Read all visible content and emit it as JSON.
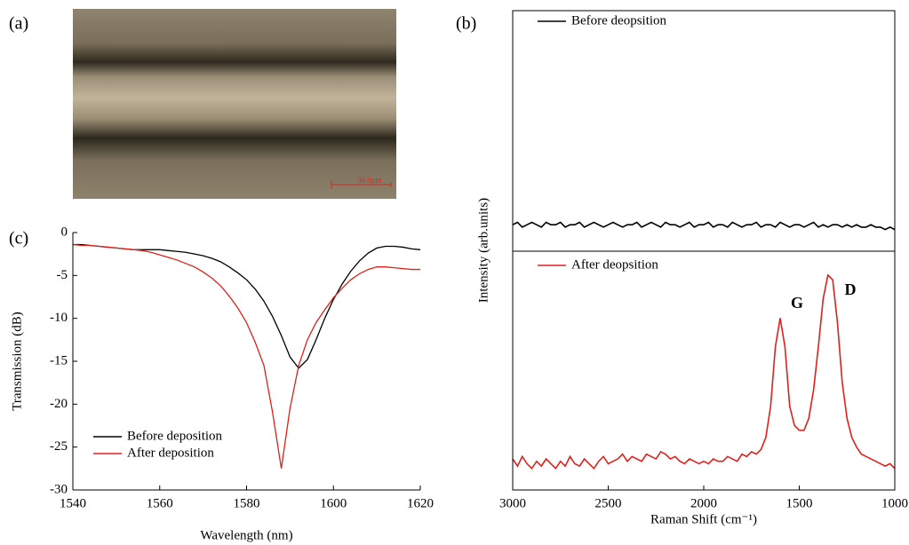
{
  "panel_labels": [
    "(a)",
    "(b)",
    "(c)"
  ],
  "image": {
    "scale_bar": "50.0μm"
  },
  "chart_data": [
    {
      "type": "line",
      "xlabel": "Wavelength (nm)",
      "ylabel": "Transmission (dB)",
      "x": [
        1540,
        1542,
        1544,
        1546,
        1548,
        1550,
        1552,
        1554,
        1556,
        1558,
        1560,
        1562,
        1564,
        1566,
        1568,
        1570,
        1572,
        1574,
        1576,
        1578,
        1580,
        1582,
        1584,
        1586,
        1588,
        1590,
        1592,
        1594,
        1596,
        1598,
        1600,
        1602,
        1604,
        1606,
        1608,
        1610,
        1612,
        1614,
        1616,
        1618,
        1620
      ],
      "xlim": [
        1540,
        1620
      ],
      "xticks": [
        1540,
        1560,
        1580,
        1600,
        1620
      ],
      "ylim": [
        -30,
        0
      ],
      "yticks": [
        0,
        -5,
        -10,
        -15,
        -20,
        -25,
        -30
      ],
      "legend": "lower left",
      "series": [
        {
          "name": "Before deposition",
          "color": "#000000",
          "values": [
            -1.4,
            -1.4,
            -1.5,
            -1.6,
            -1.7,
            -1.8,
            -1.9,
            -2.0,
            -2.0,
            -2.0,
            -2.0,
            -2.1,
            -2.2,
            -2.3,
            -2.5,
            -2.7,
            -3.0,
            -3.4,
            -4.0,
            -4.7,
            -5.5,
            -6.6,
            -8.0,
            -9.8,
            -12.0,
            -14.5,
            -15.8,
            -14.8,
            -12.5,
            -10.0,
            -7.8,
            -6.0,
            -4.5,
            -3.3,
            -2.4,
            -1.8,
            -1.6,
            -1.6,
            -1.7,
            -1.9,
            -2.0
          ]
        },
        {
          "name": "After deposition",
          "color": "#e0201b",
          "values": [
            -1.4,
            -1.5,
            -1.5,
            -1.6,
            -1.7,
            -1.8,
            -1.9,
            -2.0,
            -2.1,
            -2.3,
            -2.6,
            -2.9,
            -3.2,
            -3.6,
            -4.0,
            -4.6,
            -5.3,
            -6.2,
            -7.4,
            -8.8,
            -10.5,
            -12.8,
            -15.5,
            -21.0,
            -27.5,
            -20.5,
            -15.5,
            -12.5,
            -10.5,
            -9.0,
            -7.6,
            -6.5,
            -5.5,
            -4.8,
            -4.3,
            -4.0,
            -4.0,
            -4.1,
            -4.2,
            -4.3,
            -4.3
          ]
        }
      ]
    },
    {
      "type": "line",
      "ylabel": "Intensity (arb.units)",
      "x": [
        3000,
        2975,
        2950,
        2925,
        2900,
        2875,
        2850,
        2825,
        2800,
        2775,
        2750,
        2725,
        2700,
        2675,
        2650,
        2625,
        2600,
        2575,
        2550,
        2525,
        2500,
        2475,
        2450,
        2425,
        2400,
        2375,
        2350,
        2325,
        2300,
        2275,
        2250,
        2225,
        2200,
        2175,
        2150,
        2125,
        2100,
        2075,
        2050,
        2025,
        2000,
        1975,
        1950,
        1925,
        1900,
        1875,
        1850,
        1825,
        1800,
        1775,
        1750,
        1725,
        1700,
        1675,
        1650,
        1625,
        1600,
        1575,
        1550,
        1525,
        1500,
        1475,
        1450,
        1425,
        1400,
        1375,
        1350,
        1325,
        1300,
        1275,
        1250,
        1225,
        1200,
        1175,
        1150,
        1125,
        1100,
        1075,
        1050,
        1025,
        1000
      ],
      "xlim": [
        3000,
        1000
      ],
      "ylim": [
        0,
        1
      ],
      "legend": "upper left",
      "series": [
        {
          "name": "Before deopsition",
          "color": "#000000",
          "values": [
            0.11,
            0.12,
            0.1,
            0.11,
            0.12,
            0.11,
            0.1,
            0.12,
            0.11,
            0.11,
            0.12,
            0.1,
            0.11,
            0.11,
            0.12,
            0.1,
            0.11,
            0.12,
            0.11,
            0.1,
            0.11,
            0.12,
            0.11,
            0.1,
            0.11,
            0.11,
            0.12,
            0.1,
            0.11,
            0.12,
            0.11,
            0.1,
            0.12,
            0.11,
            0.11,
            0.1,
            0.11,
            0.12,
            0.1,
            0.11,
            0.11,
            0.12,
            0.1,
            0.11,
            0.11,
            0.1,
            0.12,
            0.11,
            0.1,
            0.11,
            0.11,
            0.12,
            0.1,
            0.11,
            0.11,
            0.1,
            0.12,
            0.11,
            0.1,
            0.11,
            0.11,
            0.1,
            0.11,
            0.12,
            0.1,
            0.11,
            0.1,
            0.11,
            0.11,
            0.1,
            0.11,
            0.1,
            0.11,
            0.1,
            0.1,
            0.11,
            0.1,
            0.1,
            0.09,
            0.1,
            0.09
          ]
        }
      ]
    },
    {
      "type": "line",
      "xlabel": "Raman Shift (cm⁻¹)",
      "x": [
        3000,
        2975,
        2950,
        2925,
        2900,
        2875,
        2850,
        2825,
        2800,
        2775,
        2750,
        2725,
        2700,
        2675,
        2650,
        2625,
        2600,
        2575,
        2550,
        2525,
        2500,
        2475,
        2450,
        2425,
        2400,
        2375,
        2350,
        2325,
        2300,
        2275,
        2250,
        2225,
        2200,
        2175,
        2150,
        2125,
        2100,
        2075,
        2050,
        2025,
        2000,
        1975,
        1950,
        1925,
        1900,
        1875,
        1850,
        1825,
        1800,
        1775,
        1750,
        1725,
        1700,
        1675,
        1650,
        1625,
        1600,
        1575,
        1550,
        1525,
        1500,
        1475,
        1450,
        1425,
        1400,
        1375,
        1350,
        1325,
        1300,
        1275,
        1250,
        1225,
        1200,
        1175,
        1150,
        1125,
        1100,
        1075,
        1050,
        1025,
        1000
      ],
      "xlim": [
        3000,
        1000
      ],
      "xticks": [
        3000,
        2500,
        2000,
        1500,
        1000
      ],
      "ylim": [
        0,
        1
      ],
      "legend": "upper left",
      "annotations": [
        "G",
        "D"
      ],
      "series": [
        {
          "name": "After deopsition",
          "color": "#e0201b",
          "values": [
            0.13,
            0.1,
            0.14,
            0.11,
            0.09,
            0.12,
            0.1,
            0.13,
            0.11,
            0.09,
            0.12,
            0.1,
            0.14,
            0.11,
            0.1,
            0.13,
            0.11,
            0.09,
            0.12,
            0.14,
            0.11,
            0.12,
            0.13,
            0.15,
            0.12,
            0.14,
            0.13,
            0.12,
            0.15,
            0.14,
            0.13,
            0.16,
            0.15,
            0.13,
            0.14,
            0.12,
            0.11,
            0.13,
            0.12,
            0.11,
            0.12,
            0.11,
            0.13,
            0.12,
            0.12,
            0.14,
            0.13,
            0.12,
            0.15,
            0.14,
            0.16,
            0.15,
            0.17,
            0.22,
            0.35,
            0.6,
            0.72,
            0.6,
            0.35,
            0.27,
            0.25,
            0.25,
            0.3,
            0.42,
            0.6,
            0.8,
            0.9,
            0.88,
            0.7,
            0.45,
            0.3,
            0.22,
            0.18,
            0.15,
            0.14,
            0.13,
            0.12,
            0.11,
            0.1,
            0.11,
            0.09
          ]
        }
      ]
    }
  ]
}
